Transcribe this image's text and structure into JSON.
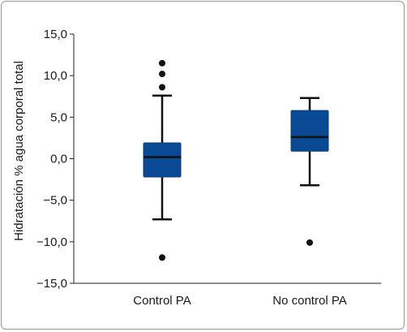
{
  "chart_data": {
    "type": "boxplot",
    "title": "",
    "ylabel": "Hidratación % agua corporal total",
    "xlabel": "",
    "ylim": [
      -15,
      15
    ],
    "yticks": [
      {
        "value": 15,
        "label": "15,0"
      },
      {
        "value": 10,
        "label": "10,0"
      },
      {
        "value": 5,
        "label": "5,0"
      },
      {
        "value": 0,
        "label": "0,0"
      },
      {
        "value": -5,
        "label": "−5,0"
      },
      {
        "value": -10,
        "label": "−10,0"
      },
      {
        "value": -15,
        "label": "−15,0"
      }
    ],
    "categories": [
      "Control PA",
      "No control PA"
    ],
    "boxes": [
      {
        "category": "Control PA",
        "whisker_low": -7.3,
        "q1": -2.2,
        "median": 0.2,
        "q3": 1.9,
        "whisker_high": 7.6,
        "outliers": [
          11.5,
          10.2,
          8.6,
          -11.9
        ]
      },
      {
        "category": "No control PA",
        "whisker_low": -3.2,
        "q1": 0.9,
        "median": 2.6,
        "q3": 5.8,
        "whisker_high": 7.3,
        "outliers": [
          -10.1
        ]
      }
    ],
    "colors": {
      "box_fill": "#0a4a94",
      "box_stroke": "#0a3f80",
      "median": "#111111",
      "whisker": "#111111",
      "outlier": "#111111",
      "axis": "#222222"
    }
  }
}
